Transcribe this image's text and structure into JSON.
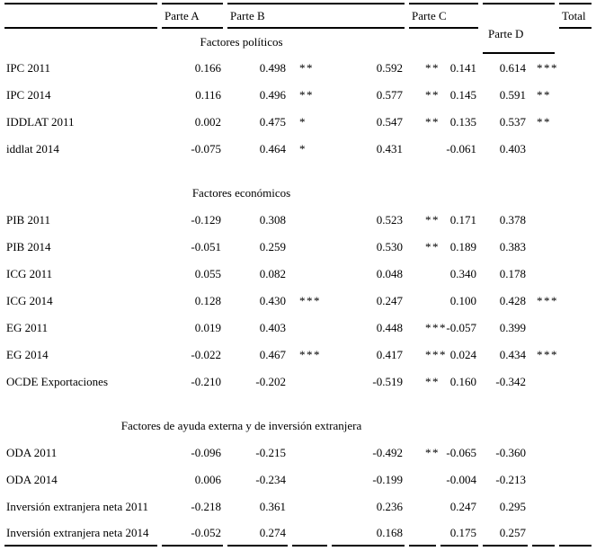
{
  "table": {
    "columns": [
      "Parte A",
      "Parte B",
      "Parte C",
      "Parte D",
      "Total"
    ],
    "sections": [
      {
        "title": "Factores políticos",
        "rows": [
          {
            "label": "IPC 2011",
            "pa": "0.166",
            "pb": "0.498",
            "pb_sig": "**",
            "pc": "0.592",
            "pc_sig": "**",
            "pd1": "0.141",
            "pd2": "0.614",
            "pd_sig": "***"
          },
          {
            "label": "IPC 2014",
            "pa": "0.116",
            "pb": "0.496",
            "pb_sig": "**",
            "pc": "0.577",
            "pc_sig": "**",
            "pd1": "0.145",
            "pd2": "0.591",
            "pd_sig": "**"
          },
          {
            "label": "IDDLAT 2011",
            "pa": "0.002",
            "pb": "0.475",
            "pb_sig": "*",
            "pc": "0.547",
            "pc_sig": "**",
            "pd1": "0.135",
            "pd2": "0.537",
            "pd_sig": "**"
          },
          {
            "label": "iddlat 2014",
            "pa": "-0.075",
            "pb": "0.464",
            "pb_sig": "*",
            "pc": "0.431",
            "pc_sig": "",
            "pd1": "-0.061",
            "pd2": "0.403",
            "pd_sig": ""
          }
        ]
      },
      {
        "title": "Factores económicos",
        "rows": [
          {
            "label": "PIB 2011",
            "pa": "-0.129",
            "pb": "0.308",
            "pb_sig": "",
            "pc": "0.523",
            "pc_sig": "**",
            "pd1": "0.171",
            "pd2": "0.378",
            "pd_sig": ""
          },
          {
            "label": "PIB 2014",
            "pa": "-0.051",
            "pb": "0.259",
            "pb_sig": "",
            "pc": "0.530",
            "pc_sig": "**",
            "pd1": "0.189",
            "pd2": "0.383",
            "pd_sig": ""
          },
          {
            "label": "ICG 2011",
            "pa": "0.055",
            "pb": "0.082",
            "pb_sig": "",
            "pc": "0.048",
            "pc_sig": "",
            "pd1": "0.340",
            "pd2": "0.178",
            "pd_sig": ""
          },
          {
            "label": "ICG 2014",
            "pa": "0.128",
            "pb": "0.430",
            "pb_sig": "***",
            "pc": "0.247",
            "pc_sig": "",
            "pd1": "0.100",
            "pd2": "0.428",
            "pd_sig": "***"
          },
          {
            "label": "EG 2011",
            "pa": "0.019",
            "pb": "0.403",
            "pb_sig": "",
            "pc": "0.448",
            "pc_sig": "***",
            "pd1": "-0.057",
            "pd2": "0.399",
            "pd_sig": ""
          },
          {
            "label": "EG 2014",
            "pa": "-0.022",
            "pb": "0.467",
            "pb_sig": "***",
            "pc": "0.417",
            "pc_sig": "***",
            "pd1": "0.024",
            "pd2": "0.434",
            "pd_sig": "***"
          },
          {
            "label": "OCDE Exportaciones",
            "pa": "-0.210",
            "pb": "-0.202",
            "pb_sig": "",
            "pc": "-0.519",
            "pc_sig": "**",
            "pd1": "0.160",
            "pd2": "-0.342",
            "pd_sig": ""
          }
        ]
      },
      {
        "title": "Factores de ayuda externa y de inversión extranjera",
        "rows": [
          {
            "label": "ODA 2011",
            "pa": "-0.096",
            "pb": "-0.215",
            "pb_sig": "",
            "pc": "-0.492",
            "pc_sig": "**",
            "pd1": "-0.065",
            "pd2": "-0.360",
            "pd_sig": ""
          },
          {
            "label": "ODA 2014",
            "pa": "0.006",
            "pb": "-0.234",
            "pb_sig": "",
            "pc": "-0.199",
            "pc_sig": "",
            "pd1": "-0.004",
            "pd2": "-0.213",
            "pd_sig": ""
          },
          {
            "label": "Inversión extranjera neta 2011",
            "pa": "-0.218",
            "pb": "0.361",
            "pb_sig": "",
            "pc": "0.236",
            "pc_sig": "",
            "pd1": "0.247",
            "pd2": "0.295",
            "pd_sig": ""
          },
          {
            "label": "Inversión extranjera neta 2014",
            "pa": "-0.052",
            "pb": "0.274",
            "pb_sig": "",
            "pc": "0.168",
            "pc_sig": "",
            "pd1": "0.175",
            "pd2": "0.257",
            "pd_sig": ""
          }
        ]
      }
    ]
  }
}
